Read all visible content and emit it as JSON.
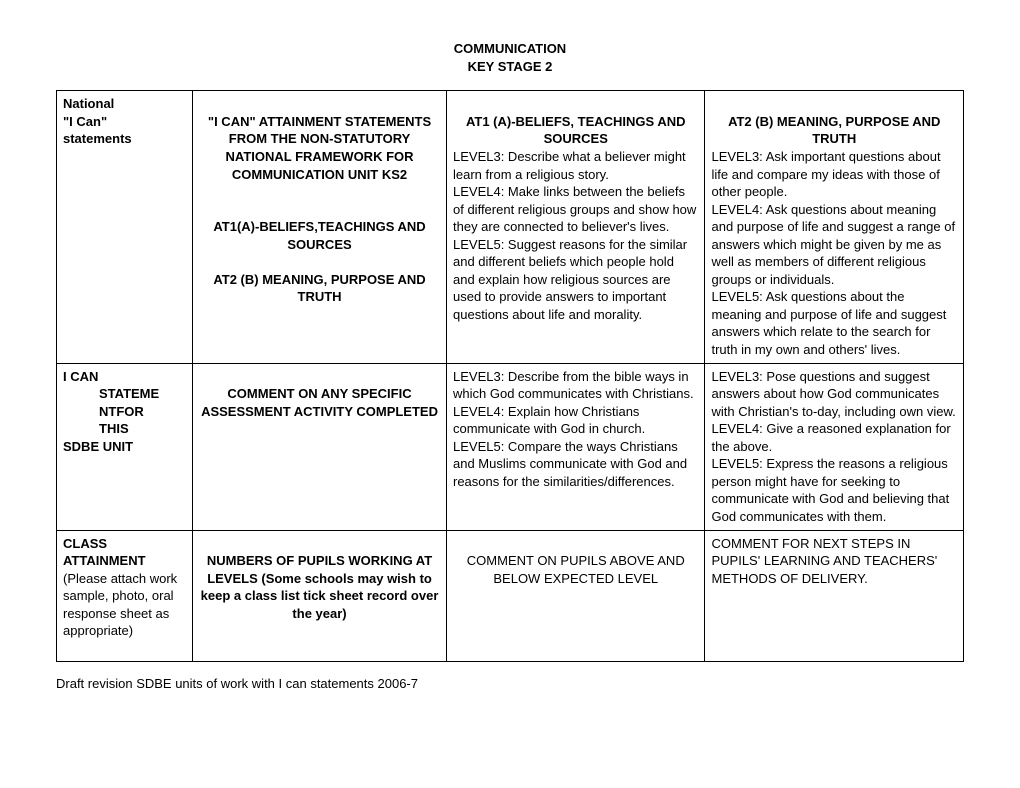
{
  "title": {
    "line1": "COMMUNICATION",
    "line2": "KEY STAGE 2"
  },
  "table": {
    "row1": {
      "c1": {
        "l1": "National",
        "l2": "\"I Can\"",
        "l3": "statements"
      },
      "c2": {
        "h": "\"I CAN\" ATTAINMENT STATEMENTS FROM THE NON-STATUTORY NATIONAL FRAMEWORK FOR COMMUNICATION UNIT KS2",
        "s1": "AT1(A)-BELIEFS,TEACHINGS AND SOURCES",
        "s2": "AT2 (B) MEANING, PURPOSE AND TRUTH"
      },
      "c3": {
        "h": "AT1 (A)-BELIEFS, TEACHINGS AND SOURCES",
        "l3": "LEVEL3: Describe what a believer might learn from a religious story.",
        "l4": "LEVEL4: Make links between the beliefs of different religious groups and show how they are connected to believer's lives.",
        "l5": "LEVEL5: Suggest reasons for the similar and different beliefs which people hold and explain how religious sources are used to provide answers to important questions about life and morality."
      },
      "c4": {
        "h": "AT2 (B) MEANING, PURPOSE AND TRUTH",
        "l3": "LEVEL3: Ask important questions about life and compare my ideas with those of other people.",
        "l4": "LEVEL4: Ask questions about meaning and purpose of life and suggest a range of answers which might be given by me as well as members of different religious groups or individuals.",
        "l5": "LEVEL5: Ask questions about the meaning and purpose of life and suggest answers which relate to the search for truth in my own and others' lives."
      }
    },
    "row2": {
      "c1": {
        "l1": "I CAN",
        "l2": "STATEME",
        "l3": "NTFOR",
        "l4": "THIS",
        "l5": "SDBE UNIT"
      },
      "c2": {
        "h": "COMMENT ON ANY SPECIFIC ASSESSMENT ACTIVITY COMPLETED"
      },
      "c3": {
        "l3": "LEVEL3: Describe from the bible ways in which God communicates with Christians.",
        "l4": "LEVEL4: Explain how Christians communicate with God in church.",
        "l5": "LEVEL5: Compare the ways Christians and Muslims communicate with God and reasons for the similarities/differences."
      },
      "c4": {
        "l3": "LEVEL3: Pose questions and suggest answers about how God communicates with Christian's to-day, including own view.",
        "l4": "LEVEL4: Give a reasoned explanation for the above.",
        "l5": "LEVEL5: Express the reasons a religious person might have for seeking to communicate with God and believing that God communicates with them."
      }
    },
    "row3": {
      "c1": {
        "l1": "CLASS",
        "l2": "ATTAINMENT",
        "l3": "(Please attach work sample, photo, oral response sheet as appropriate)"
      },
      "c2": {
        "h": "NUMBERS OF PUPILS WORKING AT LEVELS (Some schools may wish to keep a class list tick sheet record over the year)"
      },
      "c3": {
        "t": "COMMENT ON PUPILS ABOVE AND BELOW EXPECTED LEVEL"
      },
      "c4": {
        "t": "COMMENT FOR NEXT STEPS IN PUPILS' LEARNING AND TEACHERS' METHODS OF DELIVERY."
      }
    }
  },
  "footer": "Draft revision SDBE units of work with I can statements 2006-7"
}
